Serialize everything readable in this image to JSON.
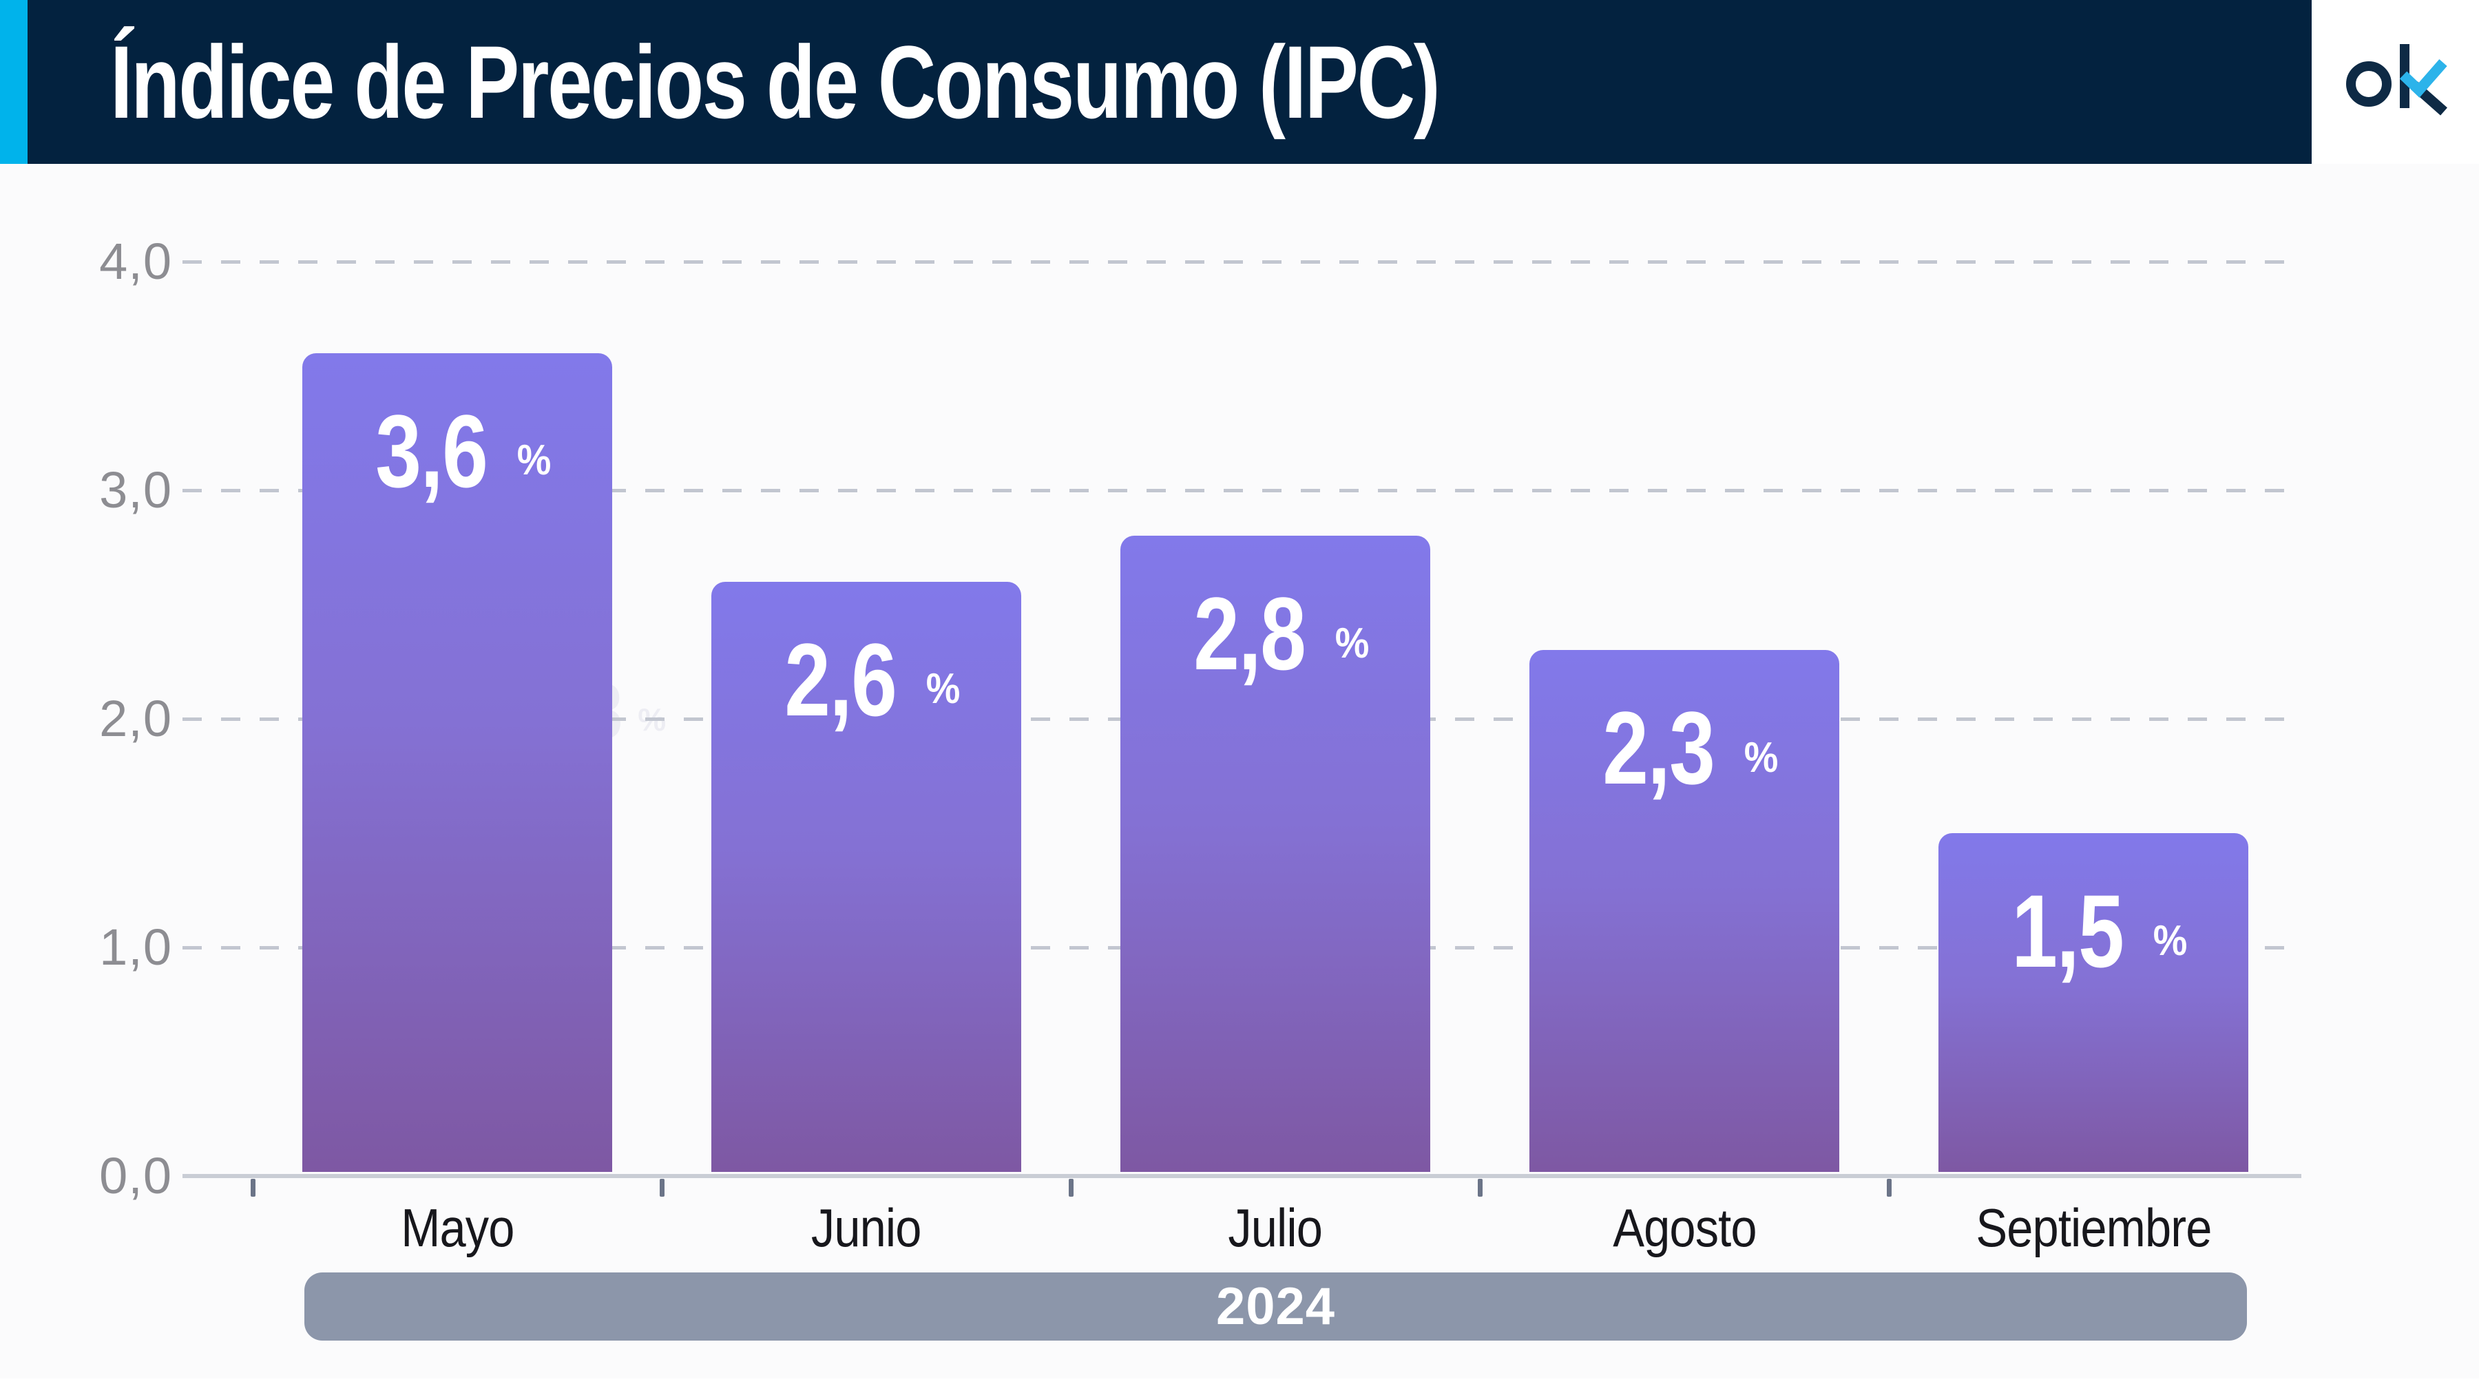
{
  "header": {
    "title": "Índice de Precios de Consumo (IPC)",
    "logo_text": "ok"
  },
  "chart_data": {
    "type": "bar",
    "title": "Índice de Precios de Consumo (IPC)",
    "categories": [
      "Mayo",
      "Junio",
      "Julio",
      "Agosto",
      "Septiembre"
    ],
    "values": [
      3.6,
      2.6,
      2.8,
      2.3,
      1.5
    ],
    "value_labels": [
      "3,6",
      "2,6",
      "2,8",
      "2,3",
      "1,5"
    ],
    "unit": "%",
    "y_ticks": {
      "labels": [
        "4,0",
        "3,0",
        "2,0",
        "1,0",
        "0,0"
      ],
      "values": [
        4,
        3,
        2,
        1,
        0
      ]
    },
    "ylim": [
      0,
      4
    ],
    "grid": "horizontal dashed",
    "legend": "none",
    "footer_label": "2024",
    "ghost_label": {
      "number": "3",
      "unit": "%"
    }
  },
  "colors": {
    "page_bg": "#fbfbfc",
    "header_bg": "#03223f",
    "accent_cyan": "#00b3eb",
    "bar_gradient_top": "#8279ea",
    "bar_gradient_bottom": "#7e58a3",
    "grid_dash": "#c2c6d0",
    "axis_line": "#c9cdd5",
    "tick": "#6b7488",
    "y_label": "#8d8d92",
    "x_label": "#17171c",
    "footer_bg": "#8c96aa",
    "value_text": "#ffffff",
    "ghost_text": "#ededf3",
    "logo_navy": "#0e2a45",
    "logo_cyan": "#2cb3ea"
  }
}
